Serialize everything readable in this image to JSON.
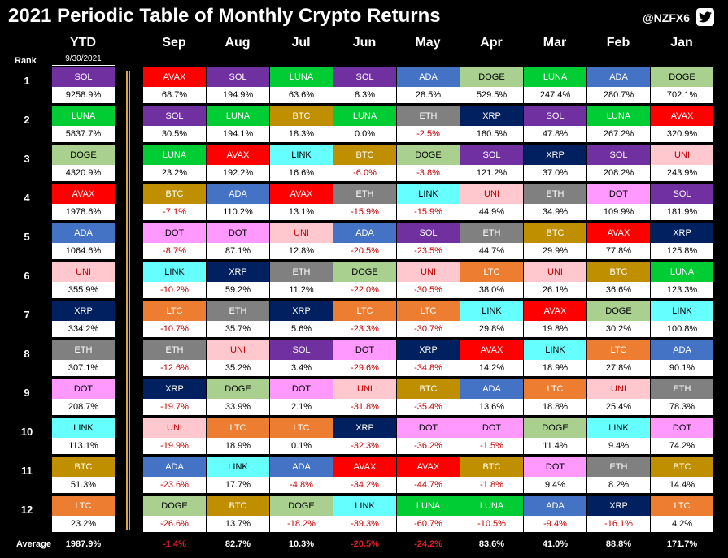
{
  "title": "2021 Periodic Table of Monthly Crypto Returns",
  "handle": "@NZFX6",
  "rank_header": "Rank",
  "average_label": "Average",
  "ytd_date": "9/30/2021",
  "colors": {
    "SOL": {
      "bg": "#7030a0",
      "fg": "#ffffff"
    },
    "LUNA": {
      "bg": "#00cc33",
      "fg": "#ffffff"
    },
    "DOGE": {
      "bg": "#a9d08e",
      "fg": "#000000"
    },
    "AVAX": {
      "bg": "#ff0000",
      "fg": "#ffffff"
    },
    "ADA": {
      "bg": "#4472c4",
      "fg": "#ffffff"
    },
    "UNI": {
      "bg": "#ffc7ce",
      "fg": "#c00000"
    },
    "XRP": {
      "bg": "#002060",
      "fg": "#ffffff"
    },
    "ETH": {
      "bg": "#808080",
      "fg": "#ffffff"
    },
    "DOT": {
      "bg": "#ff99ff",
      "fg": "#000000"
    },
    "LINK": {
      "bg": "#66ffff",
      "fg": "#000000"
    },
    "BTC": {
      "bg": "#bf8f00",
      "fg": "#ffffff"
    },
    "LTC": {
      "bg": "#ed7d31",
      "fg": "#ffffff"
    }
  },
  "chart_data": {
    "type": "table",
    "title": "2021 Periodic Table of Monthly Crypto Returns",
    "ranks": [
      "1",
      "2",
      "3",
      "4",
      "5",
      "6",
      "7",
      "8",
      "9",
      "10",
      "11",
      "12"
    ],
    "columns": [
      {
        "header": "YTD",
        "average": "1987.9%",
        "cells": [
          [
            "SOL",
            "9258.9%"
          ],
          [
            "LUNA",
            "5837.7%"
          ],
          [
            "DOGE",
            "4320.9%"
          ],
          [
            "AVAX",
            "1978.6%"
          ],
          [
            "ADA",
            "1064.6%"
          ],
          [
            "UNI",
            "355.9%"
          ],
          [
            "XRP",
            "334.2%"
          ],
          [
            "ETH",
            "307.1%"
          ],
          [
            "DOT",
            "208.7%"
          ],
          [
            "LINK",
            "113.1%"
          ],
          [
            "BTC",
            "51.3%"
          ],
          [
            "LTC",
            "23.2%"
          ]
        ]
      },
      {
        "header": "Sep",
        "average": "-1.4%",
        "cells": [
          [
            "AVAX",
            "68.7%"
          ],
          [
            "SOL",
            "30.5%"
          ],
          [
            "LUNA",
            "23.2%"
          ],
          [
            "BTC",
            "-7.1%"
          ],
          [
            "DOT",
            "-8.7%"
          ],
          [
            "LINK",
            "-10.2%"
          ],
          [
            "LTC",
            "-10.7%"
          ],
          [
            "ETH",
            "-12.6%"
          ],
          [
            "XRP",
            "-19.7%"
          ],
          [
            "UNI",
            "-19.9%"
          ],
          [
            "ADA",
            "-23.6%"
          ],
          [
            "DOGE",
            "-26.6%"
          ]
        ]
      },
      {
        "header": "Aug",
        "average": "82.7%",
        "cells": [
          [
            "SOL",
            "194.9%"
          ],
          [
            "LUNA",
            "194.1%"
          ],
          [
            "AVAX",
            "192.2%"
          ],
          [
            "ADA",
            "110.2%"
          ],
          [
            "DOT",
            "87.1%"
          ],
          [
            "XRP",
            "59.2%"
          ],
          [
            "ETH",
            "35.7%"
          ],
          [
            "UNI",
            "35.2%"
          ],
          [
            "DOGE",
            "33.9%"
          ],
          [
            "LTC",
            "18.9%"
          ],
          [
            "LINK",
            "17.7%"
          ],
          [
            "BTC",
            "13.7%"
          ]
        ]
      },
      {
        "header": "Jul",
        "average": "10.3%",
        "cells": [
          [
            "LUNA",
            "63.6%"
          ],
          [
            "BTC",
            "18.3%"
          ],
          [
            "LINK",
            "16.6%"
          ],
          [
            "AVAX",
            "13.1%"
          ],
          [
            "UNI",
            "12.8%"
          ],
          [
            "ETH",
            "11.2%"
          ],
          [
            "XRP",
            "5.6%"
          ],
          [
            "SOL",
            "3.4%"
          ],
          [
            "DOT",
            "2.1%"
          ],
          [
            "LTC",
            "0.1%"
          ],
          [
            "ADA",
            "-4.8%"
          ],
          [
            "DOGE",
            "-18.2%"
          ]
        ]
      },
      {
        "header": "Jun",
        "average": "-20.5%",
        "cells": [
          [
            "SOL",
            "8.3%"
          ],
          [
            "LUNA",
            "0.0%"
          ],
          [
            "BTC",
            "-6.0%"
          ],
          [
            "ETH",
            "-15.9%"
          ],
          [
            "ADA",
            "-20.5%"
          ],
          [
            "DOGE",
            "-22.0%"
          ],
          [
            "LTC",
            "-23.3%"
          ],
          [
            "DOT",
            "-29.6%"
          ],
          [
            "UNI",
            "-31.8%"
          ],
          [
            "XRP",
            "-32.3%"
          ],
          [
            "AVAX",
            "-34.2%"
          ],
          [
            "LINK",
            "-39.3%"
          ]
        ]
      },
      {
        "header": "May",
        "average": "-24.2%",
        "cells": [
          [
            "ADA",
            "28.5%"
          ],
          [
            "ETH",
            "-2.5%"
          ],
          [
            "DOGE",
            "-3.8%"
          ],
          [
            "LINK",
            "-15.9%"
          ],
          [
            "SOL",
            "-23.5%"
          ],
          [
            "UNI",
            "-30.5%"
          ],
          [
            "LTC",
            "-30.7%"
          ],
          [
            "XRP",
            "-34.8%"
          ],
          [
            "BTC",
            "-35.4%"
          ],
          [
            "DOT",
            "-36.2%"
          ],
          [
            "AVAX",
            "-44.7%"
          ],
          [
            "LUNA",
            "-60.7%"
          ]
        ]
      },
      {
        "header": "Apr",
        "average": "83.6%",
        "cells": [
          [
            "DOGE",
            "529.5%"
          ],
          [
            "XRP",
            "180.5%"
          ],
          [
            "SOL",
            "121.2%"
          ],
          [
            "UNI",
            "44.9%"
          ],
          [
            "ETH",
            "44.7%"
          ],
          [
            "LTC",
            "38.0%"
          ],
          [
            "LINK",
            "29.8%"
          ],
          [
            "AVAX",
            "14.2%"
          ],
          [
            "ADA",
            "13.6%"
          ],
          [
            "DOT",
            "-1.5%"
          ],
          [
            "BTC",
            "-1.8%"
          ],
          [
            "LUNA",
            "-10.5%"
          ]
        ]
      },
      {
        "header": "Mar",
        "average": "41.0%",
        "cells": [
          [
            "LUNA",
            "247.4%"
          ],
          [
            "SOL",
            "47.8%"
          ],
          [
            "XRP",
            "37.0%"
          ],
          [
            "ETH",
            "34.9%"
          ],
          [
            "BTC",
            "29.9%"
          ],
          [
            "UNI",
            "26.1%"
          ],
          [
            "AVAX",
            "19.8%"
          ],
          [
            "LINK",
            "18.9%"
          ],
          [
            "LTC",
            "18.8%"
          ],
          [
            "DOGE",
            "11.4%"
          ],
          [
            "DOT",
            "9.4%"
          ],
          [
            "ADA",
            "-9.4%"
          ]
        ]
      },
      {
        "header": "Feb",
        "average": "88.8%",
        "cells": [
          [
            "ADA",
            "280.7%"
          ],
          [
            "LUNA",
            "267.2%"
          ],
          [
            "SOL",
            "208.2%"
          ],
          [
            "DOT",
            "109.9%"
          ],
          [
            "AVAX",
            "77.8%"
          ],
          [
            "BTC",
            "36.6%"
          ],
          [
            "DOGE",
            "30.2%"
          ],
          [
            "LTC",
            "27.8%"
          ],
          [
            "UNI",
            "25.4%"
          ],
          [
            "LINK",
            "9.4%"
          ],
          [
            "ETH",
            "8.2%"
          ],
          [
            "XRP",
            "-16.1%"
          ]
        ]
      },
      {
        "header": "Jan",
        "average": "171.7%",
        "cells": [
          [
            "DOGE",
            "702.1%"
          ],
          [
            "AVAX",
            "320.9%"
          ],
          [
            "UNI",
            "243.9%"
          ],
          [
            "SOL",
            "181.9%"
          ],
          [
            "XRP",
            "125.8%"
          ],
          [
            "LUNA",
            "123.3%"
          ],
          [
            "LINK",
            "100.8%"
          ],
          [
            "ADA",
            "90.1%"
          ],
          [
            "ETH",
            "78.3%"
          ],
          [
            "DOT",
            "74.2%"
          ],
          [
            "BTC",
            "14.4%"
          ],
          [
            "LTC",
            "4.2%"
          ]
        ]
      }
    ]
  }
}
